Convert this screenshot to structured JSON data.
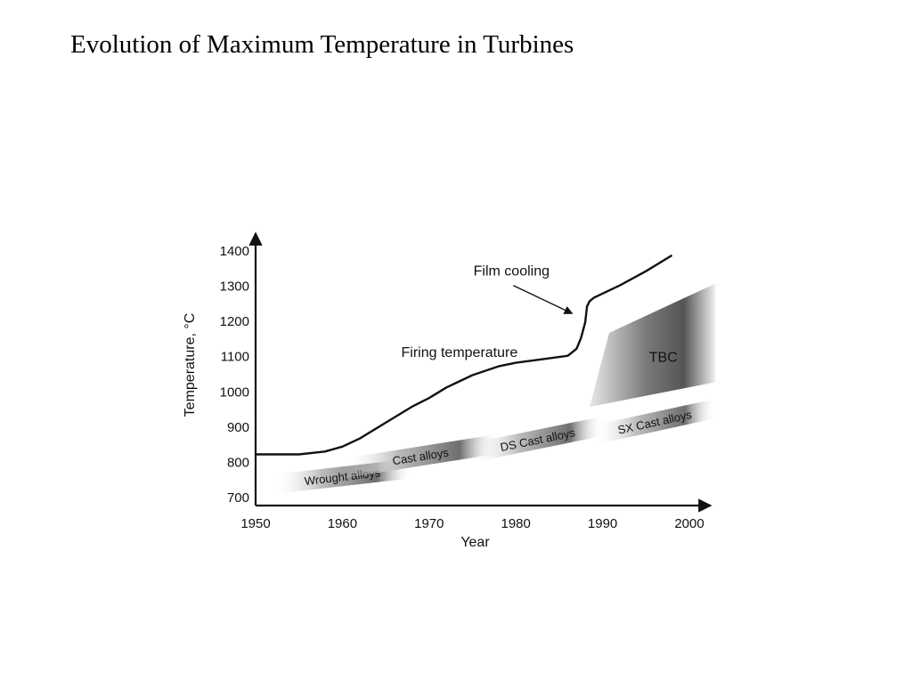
{
  "slide": {
    "title": "Evolution of Maximum Temperature in Turbines"
  },
  "chart_data": {
    "type": "line",
    "title": "",
    "xlabel": "Year",
    "ylabel": "Temperature, °C",
    "xlim": [
      1950,
      2000
    ],
    "ylim": [
      680,
      1410
    ],
    "x_ticks": [
      "1950",
      "1960",
      "1970",
      "1980",
      "1990",
      "2000"
    ],
    "y_ticks": [
      "700",
      "800",
      "900",
      "1000",
      "1100",
      "1200",
      "1300",
      "1400"
    ],
    "grid": false,
    "series": [
      {
        "name": "Firing temperature",
        "x": [
          1950,
          1955,
          1958,
          1960,
          1962,
          1965,
          1968,
          1970,
          1972,
          1975,
          1978,
          1980,
          1983,
          1986,
          1987,
          1987.5,
          1988,
          1988.2,
          1988.5,
          1989,
          1992,
          1995,
          1998
        ],
        "y": [
          820,
          820,
          828,
          842,
          865,
          910,
          955,
          980,
          1010,
          1045,
          1070,
          1080,
          1090,
          1100,
          1120,
          1150,
          1195,
          1240,
          1255,
          1265,
          1300,
          1340,
          1385
        ]
      }
    ],
    "bands": [
      {
        "label": "Wrought alloys",
        "x": [
          1952,
          1968
        ],
        "y": [
          735,
          780
        ]
      },
      {
        "label": "Cast alloys",
        "x": [
          1960,
          1978
        ],
        "y": [
          780,
          850
        ]
      },
      {
        "label": "DS Cast alloys",
        "x": [
          1975,
          1990
        ],
        "y": [
          825,
          900
        ]
      },
      {
        "label": "SX Cast alloys",
        "x": [
          1989,
          2003
        ],
        "y": [
          875,
          950
        ]
      }
    ],
    "tbc_region": {
      "label": "TBC",
      "x": [
        1988.5,
        2003
      ],
      "y_bottom": [
        955,
        1025
      ],
      "y_top": [
        1165,
        1305
      ]
    },
    "annotations": [
      {
        "text": "Film cooling",
        "x": 1979.5,
        "y": 1340,
        "arrow_to_x": 1986.5,
        "arrow_to_y": 1220
      },
      {
        "text": "Firing temperature",
        "x": 1973.5,
        "y": 1110
      },
      {
        "text": "TBC",
        "x": 1997,
        "y": 1095
      }
    ]
  }
}
